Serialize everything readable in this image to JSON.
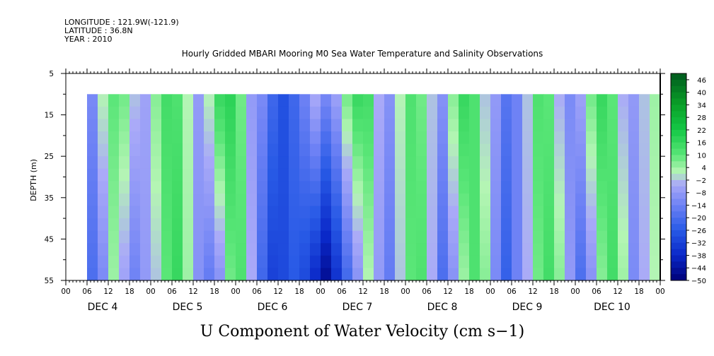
{
  "header": {
    "longitude": "LONGITUDE : 121.9W(-121.9)",
    "latitude": "LATITUDE : 36.8N",
    "year": "YEAR : 2010"
  },
  "chart_data": {
    "type": "heatmap",
    "title": "Hourly Gridded MBARI Mooring M0 Sea Water Temperature and Salinity Observations",
    "xlabel": "U Component of Water Velocity (cm s−1)",
    "ylabel": "DEPTH (m)",
    "ylim": [
      5,
      55
    ],
    "y_ticks": [
      5,
      15,
      25,
      35,
      45,
      55
    ],
    "y_inverted": true,
    "data_depth_range": [
      10,
      55
    ],
    "x_hour_ticks": [
      "00",
      "06",
      "12",
      "18",
      "00",
      "06",
      "12",
      "18",
      "00",
      "06",
      "12",
      "18",
      "00",
      "06",
      "12",
      "18",
      "00",
      "06",
      "12",
      "18",
      "00",
      "06",
      "12",
      "18",
      "00",
      "06",
      "12",
      "18",
      "00"
    ],
    "x_day_labels": [
      "DEC 4",
      "DEC 5",
      "DEC 6",
      "DEC 7",
      "DEC 8",
      "DEC 9",
      "DEC 10"
    ],
    "data_start_hour": 6,
    "colorbar": {
      "labels": [
        "46",
        "40",
        "34",
        "28",
        "22",
        "16",
        "10",
        "4",
        "−2",
        "−8",
        "−14",
        "−20",
        "−26",
        "−32",
        "−38",
        "−44",
        "−50"
      ],
      "min": -50,
      "max": 49,
      "step": 3
    },
    "column_hours": [
      6,
      9,
      12,
      15,
      18,
      21,
      24,
      27,
      30,
      33,
      36,
      39,
      42,
      45,
      48,
      51,
      54,
      57,
      60,
      63,
      66,
      69,
      72,
      75,
      78,
      81,
      84,
      87,
      90,
      93,
      96,
      99,
      102,
      105,
      108,
      111,
      114,
      117,
      120,
      123,
      126,
      129,
      132,
      135,
      138,
      141,
      144,
      147,
      150,
      153,
      156,
      159,
      162,
      165,
      168
    ],
    "surface_values": [
      -12,
      2,
      10,
      8,
      -2,
      -6,
      6,
      14,
      12,
      2,
      -8,
      2,
      16,
      18,
      8,
      -8,
      -12,
      -22,
      -28,
      -22,
      -14,
      -4,
      -12,
      -6,
      8,
      16,
      14,
      -4,
      -10,
      2,
      12,
      8,
      -2,
      -10,
      6,
      16,
      12,
      -2,
      -8,
      -18,
      -14,
      -2,
      12,
      10,
      -4,
      -12,
      -6,
      8,
      16,
      10,
      -4,
      -8,
      -2,
      4,
      2
    ],
    "bottom_values": [
      -20,
      -12,
      4,
      -6,
      -14,
      -8,
      -2,
      10,
      16,
      4,
      -10,
      -16,
      -10,
      8,
      12,
      -4,
      -22,
      -32,
      -30,
      -26,
      -30,
      -38,
      -46,
      -36,
      -22,
      -10,
      2,
      -8,
      -16,
      -2,
      10,
      12,
      -4,
      -20,
      -10,
      4,
      12,
      6,
      -12,
      -24,
      -14,
      -4,
      8,
      14,
      6,
      -8,
      -20,
      -10,
      6,
      14,
      4,
      -12,
      -4,
      2,
      -2
    ]
  }
}
